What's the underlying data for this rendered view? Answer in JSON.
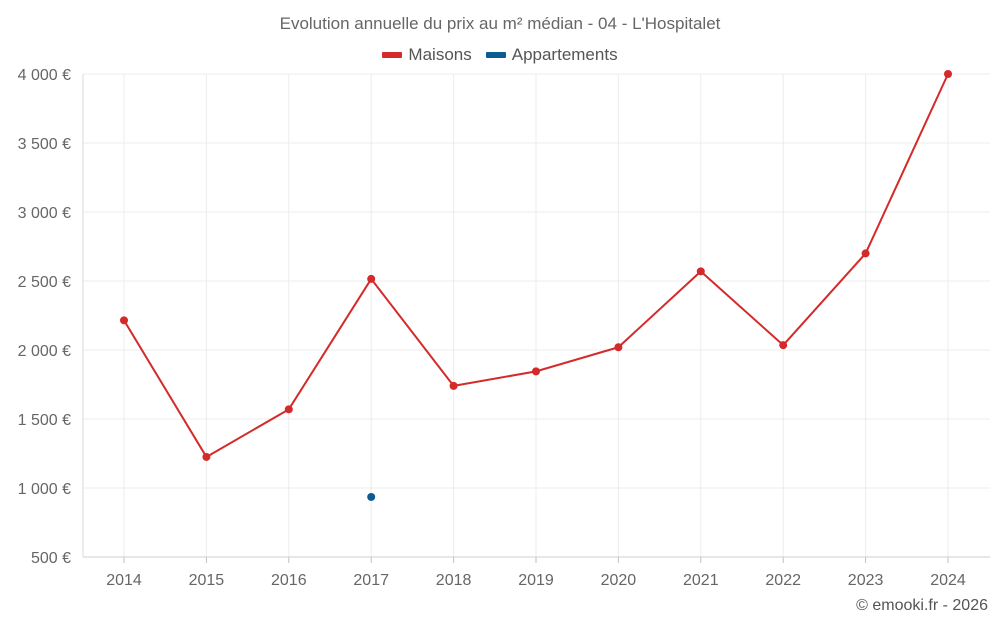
{
  "chart_data": {
    "type": "line",
    "title": "Evolution annuelle du prix au m² médian - 04 - L'Hospitalet",
    "xlabel": "",
    "ylabel": "",
    "categories": [
      "2014",
      "2015",
      "2016",
      "2017",
      "2018",
      "2019",
      "2020",
      "2021",
      "2022",
      "2023",
      "2024"
    ],
    "ylim": [
      500,
      4000
    ],
    "yticks": [
      500,
      1000,
      1500,
      2000,
      2500,
      3000,
      3500,
      4000
    ],
    "ytick_labels": [
      "500 €",
      "1 000 €",
      "1 500 €",
      "2 000 €",
      "2 500 €",
      "3 000 €",
      "3 500 €",
      "4 000 €"
    ],
    "grid": true,
    "legend_position": "top-center",
    "series": [
      {
        "name": "Maisons",
        "color": "#d42a2a",
        "values": [
          2215,
          1225,
          1570,
          2515,
          1740,
          1845,
          2020,
          2570,
          2035,
          2700,
          4000
        ]
      },
      {
        "name": "Appartements",
        "color": "#0d5c91",
        "values": [
          null,
          null,
          null,
          935,
          null,
          null,
          null,
          null,
          null,
          null,
          null
        ]
      }
    ]
  },
  "credit": "© emooki.fr - 2026"
}
